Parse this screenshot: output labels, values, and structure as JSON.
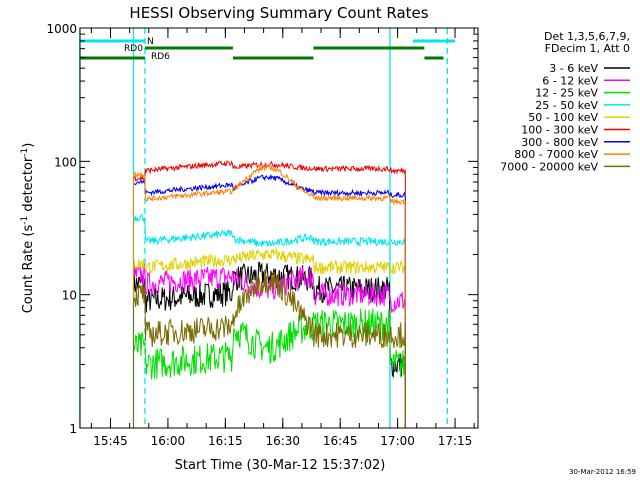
{
  "chart_data": {
    "type": "line",
    "title": "HESSI Observing Summary Count Rates",
    "xlabel": "Start Time (30-Mar-12 15:37:02)",
    "ylabel_main": "Count Rate (s",
    "ylabel_sup1": "-1",
    "ylabel_mid": " detector",
    "ylabel_sup2": "-1",
    "ylabel_end": ")",
    "ylabel": "Count Rate (s-1 detector-1)",
    "yscale": "log",
    "ylim": [
      1,
      1000
    ],
    "xlim": [
      "15:37:02",
      "17:21:00"
    ],
    "x_ticks": [
      "15:45",
      "16:00",
      "16:15",
      "16:30",
      "16:45",
      "17:00",
      "17:15"
    ],
    "y_ticks": [
      "1",
      "10",
      "100",
      "1000"
    ],
    "legend_header": [
      "Det 1,3,5,6,7,9,",
      "FDecim 1, Att 0"
    ],
    "footer_date": "30-Mar-2012 16:59",
    "flags": {
      "night": {
        "label": "N",
        "color": "#00e5ee",
        "intervals": [
          [
            "15:37",
            "15:54"
          ],
          [
            "17:04",
            "17:15"
          ]
        ]
      },
      "rd0": {
        "label": "RD0",
        "color": "#007a00",
        "intervals": [
          [
            "15:54",
            "16:17"
          ],
          [
            "16:38",
            "17:07"
          ]
        ]
      },
      "rd6": {
        "label": "RD6",
        "color": "#007a00",
        "intervals": [
          [
            "15:37",
            "15:54"
          ],
          [
            "16:17",
            "16:38"
          ],
          [
            "17:07",
            "17:12"
          ]
        ]
      }
    },
    "saa_lines": [
      {
        "time": "15:54",
        "style": "dashed",
        "color": "#00e5ee"
      },
      {
        "time": "17:13",
        "style": "dashed",
        "color": "#00e5ee"
      },
      {
        "time": "15:37",
        "style": "solid",
        "color": "#00e5ee"
      },
      {
        "time": "15:51",
        "style": "solid",
        "color": "#00e5ee"
      },
      {
        "time": "16:58",
        "style": "solid",
        "color": "#00e5ee"
      }
    ],
    "data_interval": [
      "15:51",
      "17:02"
    ],
    "segments": [
      "15:51-15:54",
      "15:54-16:17",
      "16:17-16:38",
      "16:38-17:02"
    ],
    "series": [
      {
        "name": "3 - 6 keV",
        "color": "#000000",
        "values": [
          12,
          9,
          13,
          14,
          11,
          3
        ]
      },
      {
        "name": "6 - 12 keV",
        "color": "#ff00ff",
        "values": [
          14,
          12,
          14,
          11,
          10,
          9
        ]
      },
      {
        "name": "12 - 25 keV",
        "color": "#00e000",
        "values": [
          4,
          3,
          6,
          4,
          6,
          3
        ]
      },
      {
        "name": "25 - 50 keV",
        "color": "#00e5ee",
        "values": [
          38,
          25,
          27,
          24,
          25,
          25
        ]
      },
      {
        "name": "50 - 100 keV",
        "color": "#e0d000",
        "values": [
          17,
          16,
          18,
          20,
          16,
          16
        ]
      },
      {
        "name": "100 - 300 keV",
        "color": "#ee0000",
        "values": [
          75,
          85,
          88,
          95,
          88,
          85
        ]
      },
      {
        "name": "300 - 800 keV",
        "color": "#0000ee",
        "values": [
          70,
          58,
          58,
          76,
          58,
          56
        ]
      },
      {
        "name": "800 - 7000 keV",
        "color": "#ff8000",
        "values": [
          80,
          52,
          52,
          90,
          53,
          50
        ]
      },
      {
        "name": "7000 - 20000 keV",
        "color": "#7a6a00",
        "values": [
          10,
          5,
          5,
          13,
          5,
          5
        ]
      }
    ]
  }
}
